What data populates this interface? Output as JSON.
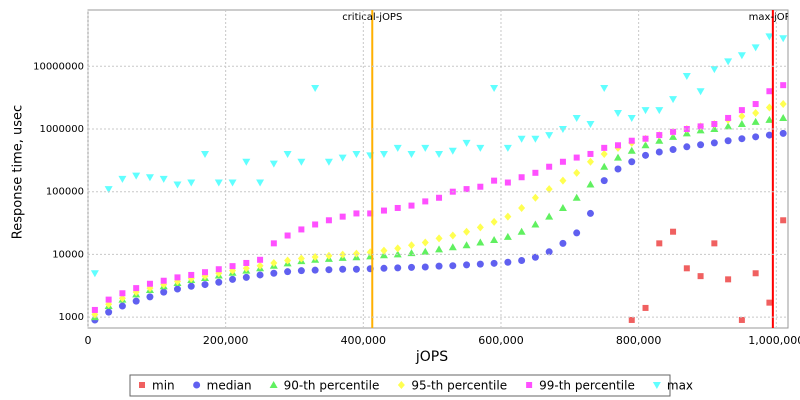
{
  "chart_data": {
    "type": "scatter",
    "log_y": true,
    "grid": true,
    "x_label": "jOPS",
    "y_label": "Response time, usec",
    "xlim": [
      0,
      1017000
    ],
    "ylim": [
      670,
      79000000
    ],
    "xticks": [
      0,
      {
        "value": 200000,
        "label": "200,000"
      },
      {
        "value": 400000,
        "label": "400,000"
      },
      {
        "value": 600000,
        "label": "600,000"
      },
      {
        "value": 800000,
        "label": "800,000"
      },
      {
        "value": 1000000,
        "label": "1,000,000"
      }
    ],
    "yticks": [
      1000,
      10000,
      100000,
      1000000,
      10000000
    ],
    "annotations": [
      {
        "label": "critical-jOPS",
        "x": 413000,
        "color": "#ffb000"
      },
      {
        "label": "max-jOPS",
        "x": 995000,
        "color": "#ff0000"
      }
    ],
    "x": [
      10000,
      30000,
      50000,
      70000,
      90000,
      110000,
      130000,
      150000,
      170000,
      190000,
      210000,
      230000,
      250000,
      270000,
      290000,
      310000,
      330000,
      350000,
      370000,
      390000,
      410000,
      430000,
      450000,
      470000,
      490000,
      510000,
      530000,
      550000,
      570000,
      590000,
      610000,
      630000,
      650000,
      670000,
      690000,
      710000,
      730000,
      750000,
      770000,
      790000,
      810000,
      830000,
      850000,
      870000,
      890000,
      910000,
      930000,
      950000,
      970000,
      990000,
      1010000
    ],
    "series": [
      {
        "name": "min",
        "color": "#f06060",
        "marker": "square",
        "values": [
          null,
          null,
          null,
          null,
          null,
          null,
          null,
          null,
          null,
          null,
          null,
          null,
          null,
          null,
          null,
          null,
          null,
          null,
          null,
          null,
          null,
          null,
          null,
          null,
          null,
          null,
          null,
          null,
          null,
          null,
          null,
          null,
          null,
          null,
          null,
          null,
          null,
          null,
          null,
          900,
          1400,
          15000,
          23000,
          6000,
          4500,
          15000,
          4000,
          900,
          5000,
          1700,
          35000
        ]
      },
      {
        "name": "median",
        "color": "#6060f0",
        "marker": "circle",
        "values": [
          900,
          1200,
          1500,
          1800,
          2100,
          2500,
          2800,
          3100,
          3300,
          3600,
          4000,
          4300,
          4700,
          5000,
          5300,
          5500,
          5600,
          5700,
          5800,
          5800,
          5900,
          6000,
          6100,
          6200,
          6300,
          6500,
          6600,
          6800,
          7000,
          7200,
          7500,
          8000,
          9000,
          11000,
          15000,
          22000,
          45000,
          150000,
          230000,
          300000,
          380000,
          430000,
          470000,
          520000,
          560000,
          600000,
          650000,
          700000,
          750000,
          800000,
          850000
        ]
      },
      {
        "name": "90-th percentile",
        "color": "#60f060",
        "marker": "triangle",
        "values": [
          1000,
          1500,
          1900,
          2300,
          2700,
          3100,
          3500,
          3900,
          4200,
          4600,
          5100,
          5500,
          6000,
          6600,
          7200,
          7800,
          8200,
          8500,
          8800,
          9000,
          9300,
          9700,
          10000,
          10500,
          11000,
          12000,
          13000,
          14000,
          15500,
          17000,
          19000,
          23000,
          30000,
          40000,
          55000,
          80000,
          130000,
          250000,
          350000,
          450000,
          550000,
          650000,
          750000,
          850000,
          950000,
          1000000,
          1100000,
          1200000,
          1300000,
          1400000,
          1500000
        ]
      },
      {
        "name": "95-th percentile",
        "color": "#ffff50",
        "marker": "diamond",
        "values": [
          1100,
          1600,
          2000,
          2500,
          2900,
          3300,
          3700,
          4100,
          4500,
          5000,
          5500,
          6000,
          6600,
          7300,
          8000,
          8600,
          9100,
          9500,
          9900,
          10300,
          10800,
          11500,
          12500,
          14000,
          15500,
          18000,
          20000,
          23000,
          27000,
          33000,
          40000,
          55000,
          80000,
          110000,
          150000,
          200000,
          300000,
          400000,
          500000,
          600000,
          700000,
          800000,
          900000,
          1000000,
          1100000,
          1200000,
          1400000,
          1600000,
          1800000,
          2200000,
          2500000
        ]
      },
      {
        "name": "99-th percentile",
        "color": "#ff50ff",
        "marker": "square",
        "values": [
          1300,
          1900,
          2400,
          2900,
          3400,
          3800,
          4300,
          4700,
          5200,
          5800,
          6500,
          7300,
          8200,
          15000,
          20000,
          25000,
          30000,
          35000,
          40000,
          45000,
          45000,
          50000,
          55000,
          60000,
          70000,
          80000,
          100000,
          110000,
          120000,
          150000,
          140000,
          170000,
          200000,
          250000,
          300000,
          350000,
          400000,
          500000,
          550000,
          650000,
          700000,
          800000,
          900000,
          1000000,
          1100000,
          1200000,
          1500000,
          2000000,
          2500000,
          4000000,
          5000000
        ]
      },
      {
        "name": "max",
        "color": "#60ffff",
        "marker": "triangle-down",
        "values": [
          5000,
          110000,
          160000,
          180000,
          170000,
          160000,
          130000,
          140000,
          400000,
          140000,
          140000,
          300000,
          140000,
          280000,
          400000,
          300000,
          4500000,
          300000,
          350000,
          400000,
          380000,
          400000,
          500000,
          400000,
          500000,
          400000,
          450000,
          600000,
          500000,
          4500000,
          500000,
          700000,
          700000,
          800000,
          1000000,
          1500000,
          1200000,
          4500000,
          1800000,
          1500000,
          2000000,
          2000000,
          3000000,
          7000000,
          4000000,
          9000000,
          12000000,
          15000000,
          20000000,
          30000000,
          28000000
        ]
      }
    ]
  }
}
